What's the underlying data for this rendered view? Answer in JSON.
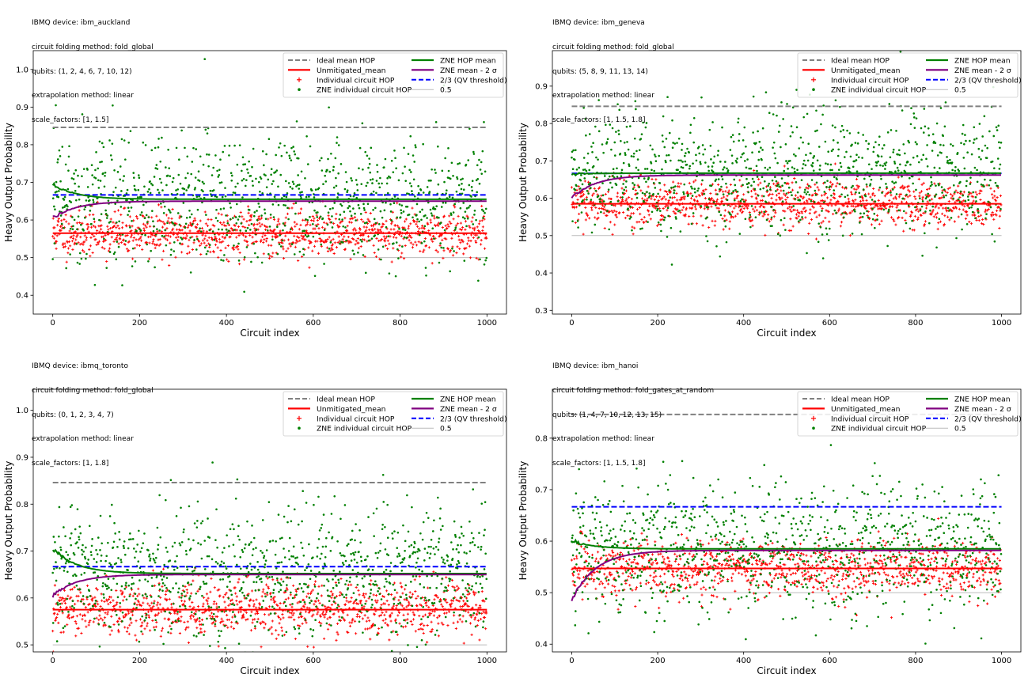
{
  "chart_data": [
    {
      "type": "scatter",
      "header": [
        "IBMQ device: ibm_auckland",
        "circuit folding method: fold_global",
        "qubits: (1, 2, 4, 6, 7, 10, 12)",
        "extrapolation method: linear",
        "scale_factors: [1, 1.5]"
      ],
      "xlabel": "Circuit index",
      "ylabel": "Heavy Output Probability",
      "xlim": [
        -45,
        1045
      ],
      "ylim": [
        0.35,
        1.05
      ],
      "xticks": [
        0,
        200,
        400,
        600,
        800,
        1000
      ],
      "yticks": [
        0.4,
        0.5,
        0.6,
        0.7,
        0.8,
        0.9,
        1.0
      ],
      "ytick_labels": [
        "0.4",
        "0.5",
        "0.6",
        "0.7",
        "0.8",
        "0.9",
        "1.0"
      ],
      "legend_position": "upper-right",
      "series": [
        {
          "name": "Ideal mean HOP",
          "kind": "hline",
          "value": 0.846,
          "color": "#808080",
          "dash": true
        },
        {
          "name": "Unmitigated_mean",
          "kind": "hline",
          "value": 0.565,
          "color": "#ff0000"
        },
        {
          "name": "Individual circuit HOP",
          "kind": "scatter",
          "mean": 0.565,
          "spread": 0.032,
          "color": "#ff0000",
          "marker": "plus"
        },
        {
          "name": "ZNE individual circuit HOP",
          "kind": "scatter",
          "mean": 0.655,
          "spread": 0.085,
          "color": "#008000",
          "marker": "dot"
        },
        {
          "name": "ZNE HOP mean",
          "kind": "cummean",
          "start": 0.695,
          "end": 0.655,
          "color": "#008000"
        },
        {
          "name": "ZNE mean - 2 σ",
          "kind": "cummean",
          "start": 0.605,
          "end": 0.65,
          "color": "#800080"
        },
        {
          "name": "2/3 (QV threshold)",
          "kind": "hline",
          "value": 0.6667,
          "color": "#0000ff",
          "dash": true
        },
        {
          "name": "0.5",
          "kind": "hline",
          "value": 0.5,
          "color": "#bbbbbb",
          "thin": true
        }
      ]
    },
    {
      "type": "scatter",
      "header": [
        "IBMQ device: ibm_geneva",
        "circuit folding method: fold_global",
        "qubits: (5, 8, 9, 11, 13, 14)",
        "extrapolation method: linear",
        "scale_factors: [1, 1.5, 1.8]"
      ],
      "xlabel": "Circuit index",
      "ylabel": "Heavy Output Probability",
      "xlim": [
        -45,
        1045
      ],
      "ylim": [
        0.29,
        0.995
      ],
      "xticks": [
        0,
        200,
        400,
        600,
        800,
        1000
      ],
      "yticks": [
        0.3,
        0.4,
        0.5,
        0.6,
        0.7,
        0.8,
        0.9
      ],
      "ytick_labels": [
        "0.3",
        "0.4",
        "0.5",
        "0.6",
        "0.7",
        "0.8",
        "0.9"
      ],
      "legend_position": "upper-right",
      "series": [
        {
          "name": "Ideal mean HOP",
          "kind": "hline",
          "value": 0.846,
          "color": "#808080",
          "dash": true
        },
        {
          "name": "Unmitigated_mean",
          "kind": "hline",
          "value": 0.585,
          "color": "#ff0000"
        },
        {
          "name": "Individual circuit HOP",
          "kind": "scatter",
          "mean": 0.585,
          "spread": 0.033,
          "color": "#ff0000",
          "marker": "plus"
        },
        {
          "name": "ZNE individual circuit HOP",
          "kind": "scatter",
          "mean": 0.665,
          "spread": 0.085,
          "color": "#008000",
          "marker": "dot"
        },
        {
          "name": "ZNE HOP mean",
          "kind": "cummean",
          "start": 0.665,
          "end": 0.667,
          "color": "#008000"
        },
        {
          "name": "ZNE mean - 2 σ",
          "kind": "cummean",
          "start": 0.6,
          "end": 0.662,
          "color": "#800080"
        },
        {
          "name": "2/3 (QV threshold)",
          "kind": "hline",
          "value": 0.6667,
          "color": "#0000ff",
          "dash": true
        },
        {
          "name": "0.5",
          "kind": "hline",
          "value": 0.5,
          "color": "#bbbbbb",
          "thin": true
        }
      ]
    },
    {
      "type": "scatter",
      "header": [
        "IBMQ device: ibmq_toronto",
        "circuit folding method: fold_global",
        "qubits: (0, 1, 2, 3, 4, 7)",
        "extrapolation method: linear",
        "scale_factors: [1, 1.8]"
      ],
      "xlabel": "Circuit index",
      "ylabel": "Heavy Output Probability",
      "xlim": [
        -45,
        1045
      ],
      "ylim": [
        0.485,
        1.045
      ],
      "xticks": [
        0,
        200,
        400,
        600,
        800,
        1000
      ],
      "yticks": [
        0.5,
        0.6,
        0.7,
        0.8,
        0.9,
        1.0
      ],
      "ytick_labels": [
        "0.5",
        "0.6",
        "0.7",
        "0.8",
        "0.9",
        "1.0"
      ],
      "legend_position": "upper-right",
      "series": [
        {
          "name": "Ideal mean HOP",
          "kind": "hline",
          "value": 0.846,
          "color": "#808080",
          "dash": true
        },
        {
          "name": "Unmitigated_mean",
          "kind": "hline",
          "value": 0.575,
          "color": "#ff0000"
        },
        {
          "name": "Individual circuit HOP",
          "kind": "scatter",
          "mean": 0.575,
          "spread": 0.03,
          "color": "#ff0000",
          "marker": "plus"
        },
        {
          "name": "ZNE individual circuit HOP",
          "kind": "scatter",
          "mean": 0.652,
          "spread": 0.075,
          "color": "#008000",
          "marker": "dot"
        },
        {
          "name": "ZNE HOP mean",
          "kind": "cummean",
          "start": 0.705,
          "end": 0.652,
          "color": "#008000"
        },
        {
          "name": "ZNE mean - 2 σ",
          "kind": "cummean",
          "start": 0.605,
          "end": 0.65,
          "color": "#800080"
        },
        {
          "name": "2/3 (QV threshold)",
          "kind": "hline",
          "value": 0.6667,
          "color": "#0000ff",
          "dash": true
        },
        {
          "name": "0.5",
          "kind": "hline",
          "value": 0.5,
          "color": "#bbbbbb",
          "thin": true
        }
      ]
    },
    {
      "type": "scatter",
      "header": [
        "IBMQ device: ibm_hanoi",
        "circuit folding method: fold_gates_at_random",
        "qubits: (1, 4, 7, 10, 12, 13, 15)",
        "extrapolation method: linear",
        "scale_factors: [1, 1.5, 1.8]"
      ],
      "xlabel": "Circuit index",
      "ylabel": "Heavy Output Probability",
      "xlim": [
        -45,
        1045
      ],
      "ylim": [
        0.385,
        0.895
      ],
      "xticks": [
        0,
        200,
        400,
        600,
        800,
        1000
      ],
      "yticks": [
        0.4,
        0.5,
        0.6,
        0.7,
        0.8
      ],
      "ytick_labels": [
        "0.4",
        "0.5",
        "0.6",
        "0.7",
        "0.8"
      ],
      "legend_position": "upper-right",
      "series": [
        {
          "name": "Ideal mean HOP",
          "kind": "hline",
          "value": 0.846,
          "color": "#808080",
          "dash": true
        },
        {
          "name": "Unmitigated_mean",
          "kind": "hline",
          "value": 0.547,
          "color": "#ff0000"
        },
        {
          "name": "Individual circuit HOP",
          "kind": "scatter",
          "mean": 0.547,
          "spread": 0.03,
          "color": "#ff0000",
          "marker": "plus"
        },
        {
          "name": "ZNE individual circuit HOP",
          "kind": "scatter",
          "mean": 0.585,
          "spread": 0.065,
          "color": "#008000",
          "marker": "dot"
        },
        {
          "name": "ZNE HOP mean",
          "kind": "cummean",
          "start": 0.6,
          "end": 0.585,
          "color": "#008000"
        },
        {
          "name": "ZNE mean - 2 σ",
          "kind": "cummean",
          "start": 0.485,
          "end": 0.582,
          "color": "#800080"
        },
        {
          "name": "2/3 (QV threshold)",
          "kind": "hline",
          "value": 0.6667,
          "color": "#0000ff",
          "dash": true
        },
        {
          "name": "0.5",
          "kind": "hline",
          "value": 0.5,
          "color": "#bbbbbb",
          "thin": true
        }
      ]
    }
  ]
}
